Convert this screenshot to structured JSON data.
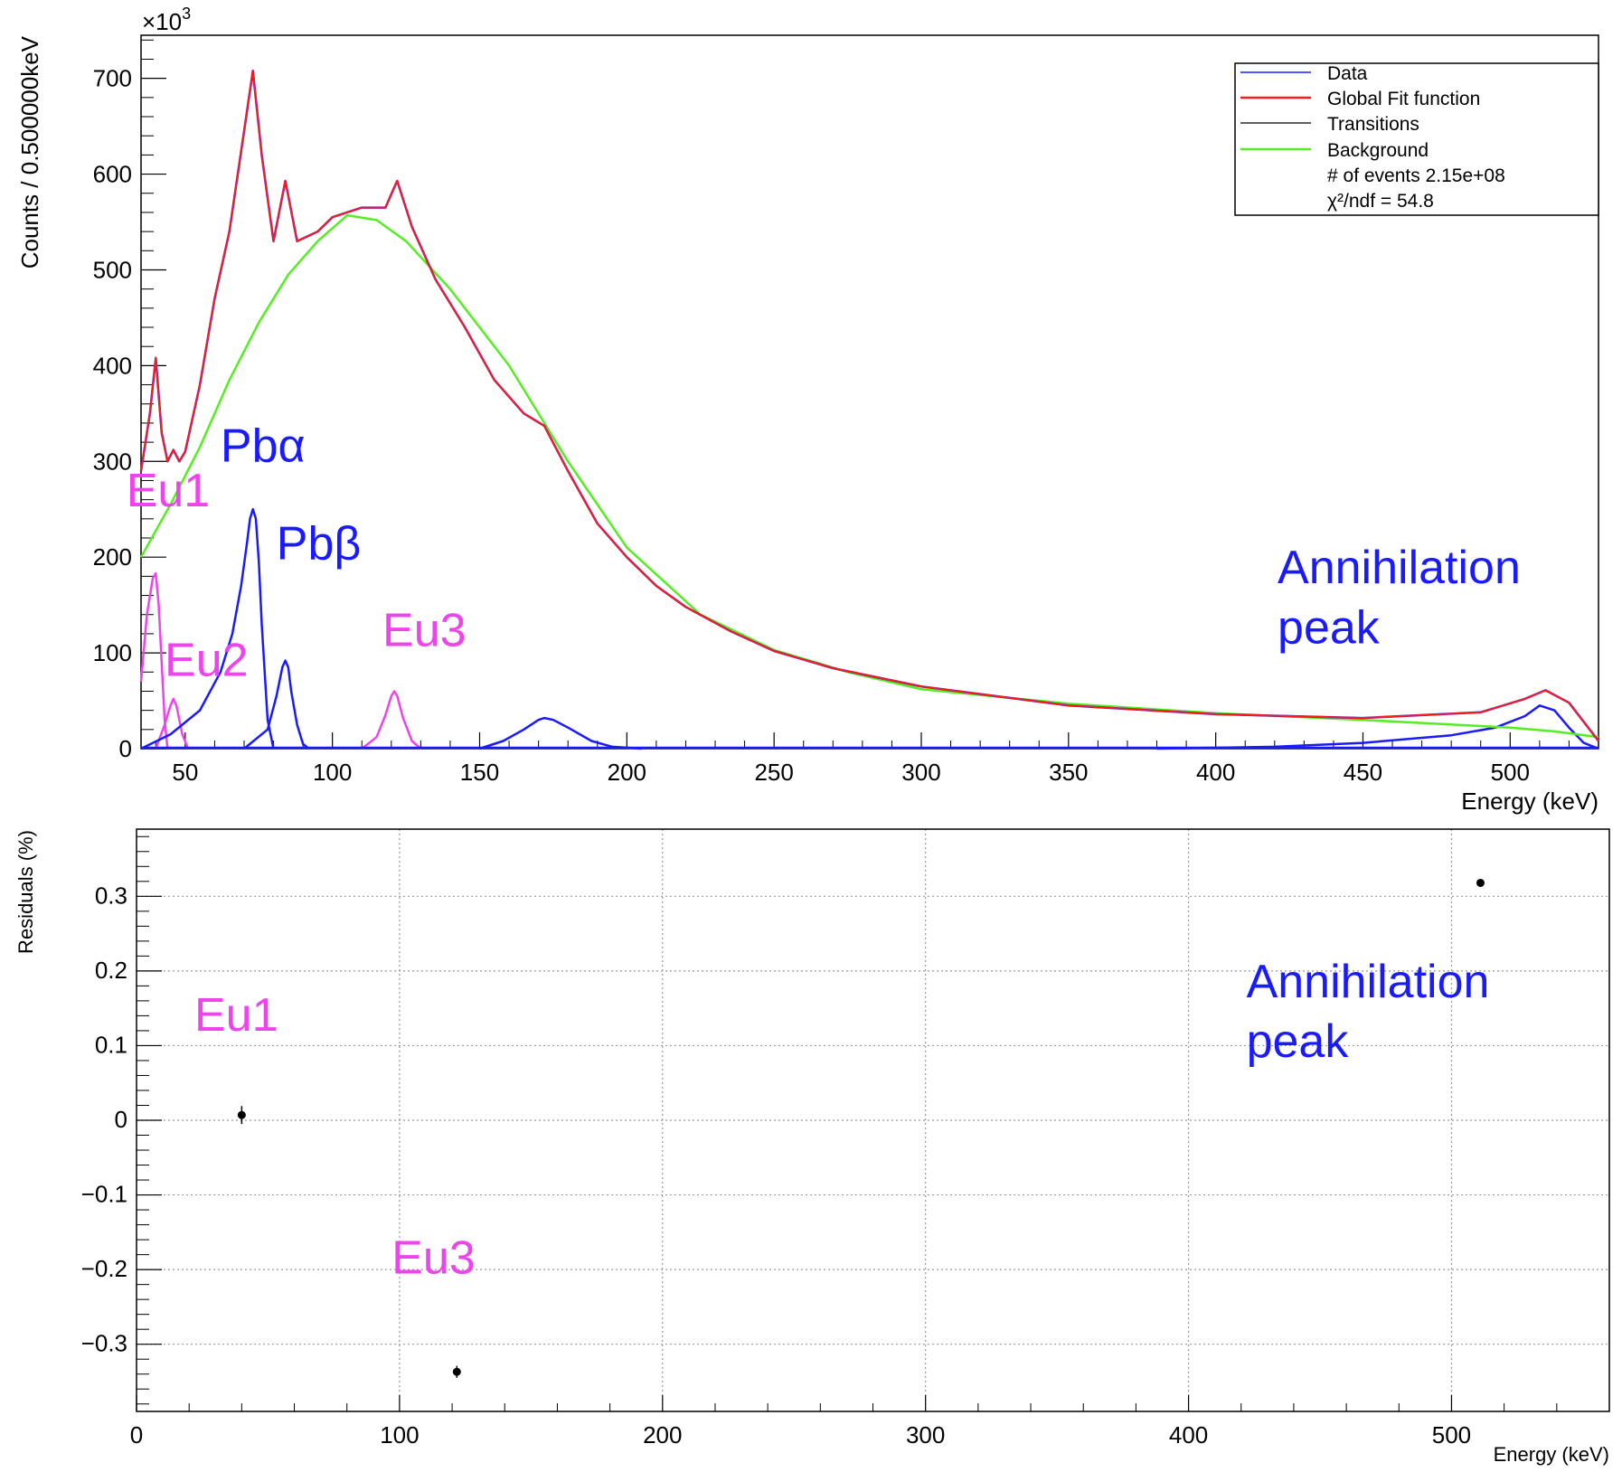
{
  "chart_data": [
    {
      "type": "line",
      "panel": "spectrum fit",
      "xlabel": "Energy (keV)",
      "ylabel": "Counts / 0.500000keV",
      "y_multiplier": "×10",
      "y_multiplier_exp": "3",
      "xlim": [
        35,
        530
      ],
      "ylim": [
        0,
        745
      ],
      "x_ticks": [
        "50",
        "100",
        "150",
        "200",
        "250",
        "300",
        "350",
        "400",
        "450",
        "500"
      ],
      "y_ticks": [
        "0",
        "100",
        "200",
        "300",
        "400",
        "500",
        "600",
        "700"
      ],
      "legend": {
        "placement": "top-right",
        "entries": [
          "Data",
          "Global Fit function",
          "Transitions",
          "Background"
        ],
        "info": [
          "# of events 2.15e+08",
          "χ²/ndf = 54.8"
        ]
      },
      "series": [
        {
          "name": "Data",
          "color": "#1a1aff",
          "x": [
            35,
            38,
            40,
            42,
            44,
            46,
            48,
            50,
            55,
            60,
            65,
            70,
            73,
            76,
            80,
            84,
            88,
            95,
            100,
            110,
            118,
            122,
            127,
            135,
            145,
            155,
            165,
            172,
            180,
            190,
            200,
            210,
            220,
            235,
            250,
            270,
            300,
            350,
            400,
            450,
            490,
            505,
            512,
            520,
            530
          ],
          "y": [
            290,
            350,
            408,
            330,
            300,
            312,
            300,
            310,
            380,
            470,
            540,
            645,
            708,
            620,
            530,
            593,
            530,
            540,
            555,
            565,
            565,
            593,
            545,
            490,
            440,
            385,
            350,
            337,
            290,
            235,
            200,
            170,
            148,
            123,
            102,
            84,
            65,
            45,
            36,
            32,
            38,
            52,
            61,
            48,
            8
          ]
        },
        {
          "name": "Global Fit function",
          "color": "#ff1a1a",
          "x": [
            35,
            38,
            40,
            42,
            44,
            46,
            48,
            50,
            55,
            60,
            65,
            70,
            73,
            76,
            80,
            84,
            88,
            95,
            100,
            110,
            118,
            122,
            127,
            135,
            145,
            155,
            165,
            172,
            180,
            190,
            200,
            210,
            220,
            235,
            250,
            270,
            300,
            350,
            400,
            450,
            490,
            505,
            512,
            520,
            530
          ],
          "y": [
            290,
            350,
            408,
            330,
            300,
            312,
            300,
            310,
            380,
            470,
            540,
            645,
            708,
            620,
            530,
            593,
            530,
            540,
            555,
            565,
            565,
            593,
            545,
            490,
            440,
            385,
            350,
            337,
            290,
            235,
            200,
            170,
            148,
            123,
            102,
            84,
            65,
            45,
            36,
            32,
            38,
            52,
            61,
            48,
            8
          ]
        },
        {
          "name": "Background",
          "color": "#55ee22",
          "x": [
            35,
            45,
            55,
            65,
            75,
            85,
            95,
            105,
            115,
            125,
            140,
            160,
            180,
            200,
            225,
            250,
            275,
            300,
            350,
            400,
            450,
            500,
            515,
            530
          ],
          "y": [
            200,
            255,
            315,
            385,
            445,
            495,
            530,
            557,
            552,
            530,
            480,
            400,
            300,
            210,
            140,
            103,
            80,
            62,
            47,
            37,
            30,
            22,
            18,
            12
          ]
        }
      ],
      "transitions": [
        {
          "name": "Eu1",
          "color": "#ee44ee",
          "x": [
            35,
            37,
            39,
            40,
            41,
            42,
            43,
            44
          ],
          "y": [
            70,
            140,
            178,
            183,
            150,
            90,
            30,
            0
          ]
        },
        {
          "name": "Eu2",
          "color": "#ee44ee",
          "x": [
            40,
            43,
            45,
            46,
            47,
            49,
            51
          ],
          "y": [
            0,
            25,
            45,
            52,
            45,
            15,
            0
          ]
        },
        {
          "name": "Pbα",
          "color": "#1a1aff",
          "x": [
            35,
            45,
            55,
            62,
            66,
            69,
            71,
            72,
            73,
            74,
            75,
            76,
            78,
            80
          ],
          "y": [
            0,
            15,
            40,
            80,
            120,
            170,
            215,
            240,
            250,
            240,
            195,
            130,
            30,
            0
          ]
        },
        {
          "name": "Pbβ",
          "color": "#1a1aff",
          "x": [
            70,
            78,
            81,
            83,
            84,
            85,
            86,
            88,
            90,
            92
          ],
          "y": [
            0,
            20,
            55,
            85,
            92,
            85,
            60,
            25,
            5,
            0
          ]
        },
        {
          "name": "Eu3",
          "color": "#ee44ee",
          "x": [
            110,
            115,
            118,
            120,
            121,
            122,
            124,
            127,
            130
          ],
          "y": [
            0,
            12,
            35,
            55,
            60,
            55,
            32,
            8,
            0
          ]
        },
        {
          "name": "",
          "color": "#1a1aff",
          "x": [
            150,
            158,
            165,
            170,
            172,
            175,
            180,
            188,
            195,
            205
          ],
          "y": [
            0,
            8,
            20,
            30,
            32,
            30,
            22,
            8,
            2,
            0
          ]
        },
        {
          "name": "Annihilation peak",
          "color": "#1a1aff",
          "x": [
            380,
            420,
            450,
            480,
            495,
            505,
            510,
            515,
            520,
            525,
            530
          ],
          "y": [
            0,
            2,
            6,
            14,
            22,
            34,
            45,
            40,
            22,
            6,
            0
          ]
        }
      ],
      "annotations": [
        {
          "text": "Pbα",
          "color": "#1a1aff",
          "x": 62,
          "y": 300
        },
        {
          "text": "Eu1",
          "color": "#ee44ee",
          "x": 30,
          "y": 253
        },
        {
          "text": "Pbβ",
          "color": "#1a1aff",
          "x": 81,
          "y": 198
        },
        {
          "text": "Eu3",
          "color": "#ee44ee",
          "x": 117,
          "y": 107
        },
        {
          "text": "Eu2",
          "color": "#ee44ee",
          "x": 43,
          "y": 76
        },
        {
          "text": "Annihilation",
          "color": "#1a1aff",
          "x": 421,
          "y": 173
        },
        {
          "text": "peak",
          "color": "#1a1aff",
          "x": 421,
          "y": 110
        }
      ]
    },
    {
      "type": "scatter",
      "panel": "residuals",
      "xlabel": "Energy (keV)",
      "ylabel": "Residuals (%)",
      "xlim": [
        0,
        560
      ],
      "ylim": [
        -0.39,
        0.39
      ],
      "grid": true,
      "x_ticks": [
        "0",
        "100",
        "200",
        "300",
        "400",
        "500"
      ],
      "y_ticks": [
        "0.3",
        "0.2",
        "0.1",
        "0",
        "−0.1",
        "−0.2",
        "−0.3"
      ],
      "points": [
        {
          "x": 40,
          "y": 0.007,
          "err": 0.012
        },
        {
          "x": 121.8,
          "y": -0.337,
          "err": 0.008
        },
        {
          "x": 511,
          "y": 0.318,
          "err": 0.005
        }
      ],
      "annotations": [
        {
          "text": "Eu1",
          "color": "#ee44ee",
          "x": 22,
          "y": 0.12
        },
        {
          "text": "Eu3",
          "color": "#ee44ee",
          "x": 97,
          "y": -0.205
        },
        {
          "text": "Annihilation",
          "color": "#1a1aff",
          "x": 422,
          "y": 0.165
        },
        {
          "text": "peak",
          "color": "#1a1aff",
          "x": 422,
          "y": 0.085
        }
      ]
    }
  ]
}
